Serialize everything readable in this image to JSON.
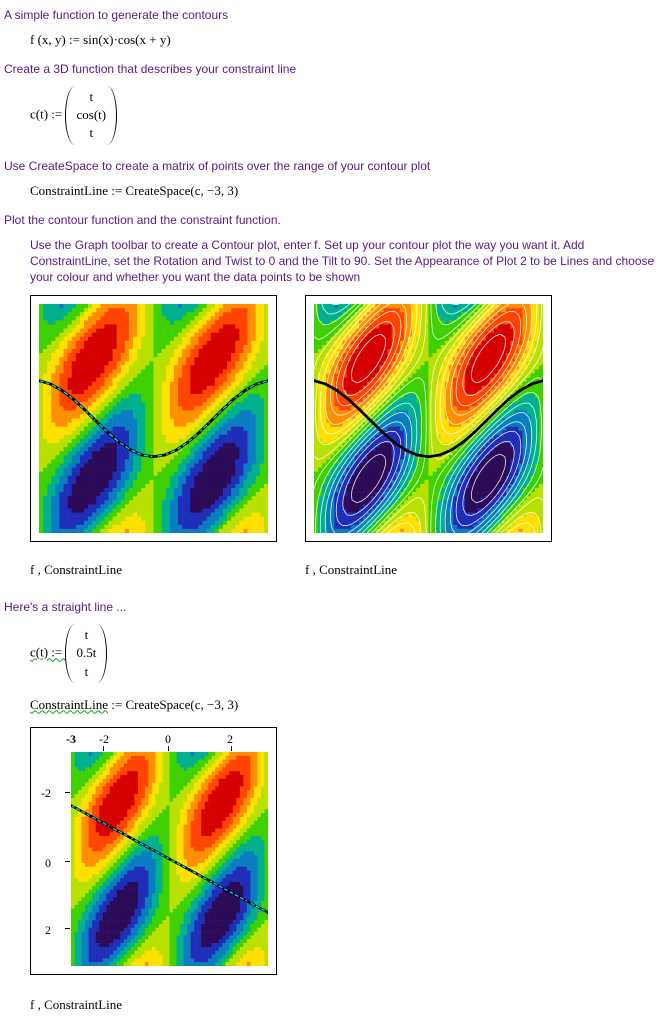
{
  "steps": {
    "s1": "A simple function to generate the contours",
    "s2": "Create a 3D function that describes your constraint line",
    "s3": "Use CreateSpace to create a matrix of points over the range of your contour plot",
    "s4": "Plot the contour function and the constraint function.",
    "instr": "Use the Graph toolbar to create a Contour plot, enter f.   Set up your contour plot the way you want it.  Add ConstraintLine, set the Rotation and Twist to 0 and the Tilt to 90.  Set the Appearance of Plot 2 to be Lines and choose your colour and whether you want the data points to be shown",
    "s5": "Here's a straight line ..."
  },
  "equations": {
    "f": "f (x, y) := sin(x)·cos(x + y)",
    "c_head": "c(t) := ",
    "c_rows": [
      "t",
      "cos(t)",
      "t"
    ],
    "cl1": "ConstraintLine := CreateSpace(c, −3, 3)",
    "c2_head": "c(t) := ",
    "c2_rows": [
      "t",
      "0.5t",
      "t"
    ],
    "cl2_a": "ConstraintLine",
    "cl2_b": " := CreateSpace(c, −3, 3)"
  },
  "captions": {
    "fc": "f , ConstraintLine"
  },
  "contour": {
    "type": "contour",
    "domain_x": [
      -3,
      3
    ],
    "domain_y": [
      -3,
      3
    ],
    "palette": [
      "#2b0a57",
      "#1e2eb8",
      "#0a7cc2",
      "#00b08f",
      "#3fd000",
      "#b8e000",
      "#ffe000",
      "#ff8e00",
      "#ff4500",
      "#d60000"
    ],
    "line_contour_color": "#ffffff",
    "background_color": "#ffffff",
    "curve_cos": {
      "stroke": "#00d7ff",
      "stroke_black": "#000000",
      "stroke_width": 1,
      "marker_size": 2,
      "points": [
        [
          -3.0,
          -0.99
        ],
        [
          -2.7,
          -0.904
        ],
        [
          -2.4,
          -0.737
        ],
        [
          -2.1,
          -0.505
        ],
        [
          -1.8,
          -0.227
        ],
        [
          -1.5,
          0.071
        ],
        [
          -1.2,
          0.362
        ],
        [
          -0.9,
          0.622
        ],
        [
          -0.6,
          0.825
        ],
        [
          -0.3,
          0.955
        ],
        [
          0.0,
          1.0
        ],
        [
          0.3,
          0.955
        ],
        [
          0.6,
          0.825
        ],
        [
          0.9,
          0.622
        ],
        [
          1.2,
          0.362
        ],
        [
          1.5,
          0.071
        ],
        [
          1.8,
          -0.227
        ],
        [
          2.1,
          -0.505
        ],
        [
          2.4,
          -0.737
        ],
        [
          2.7,
          -0.904
        ],
        [
          3.0,
          -0.99
        ]
      ]
    },
    "curve_line": {
      "stroke": "#00d7ff",
      "stroke_black": "#000000",
      "stroke_width": 1,
      "marker_size": 2,
      "points": [
        [
          -3.0,
          -1.5
        ],
        [
          -2.4,
          -1.2
        ],
        [
          -1.8,
          -0.9
        ],
        [
          -1.2,
          -0.6
        ],
        [
          -0.6,
          -0.3
        ],
        [
          0.0,
          0.0
        ],
        [
          0.6,
          0.3
        ],
        [
          1.2,
          0.6
        ],
        [
          1.8,
          0.9
        ],
        [
          2.4,
          1.2
        ],
        [
          3.0,
          1.5
        ]
      ]
    }
  },
  "axes3": {
    "xticks": [
      -3,
      -2,
      0,
      2
    ],
    "yticks": [
      -2,
      0,
      2
    ],
    "xlim": [
      -3,
      3
    ],
    "ylim": [
      -3,
      3
    ],
    "tick_font": 12,
    "xtick_labels": {
      "n3": "-3",
      "n2": "-2",
      "z": "0",
      "p2": "2"
    },
    "ytick_labels": {
      "n2": "-2",
      "z": "0",
      "p2": "2"
    }
  }
}
